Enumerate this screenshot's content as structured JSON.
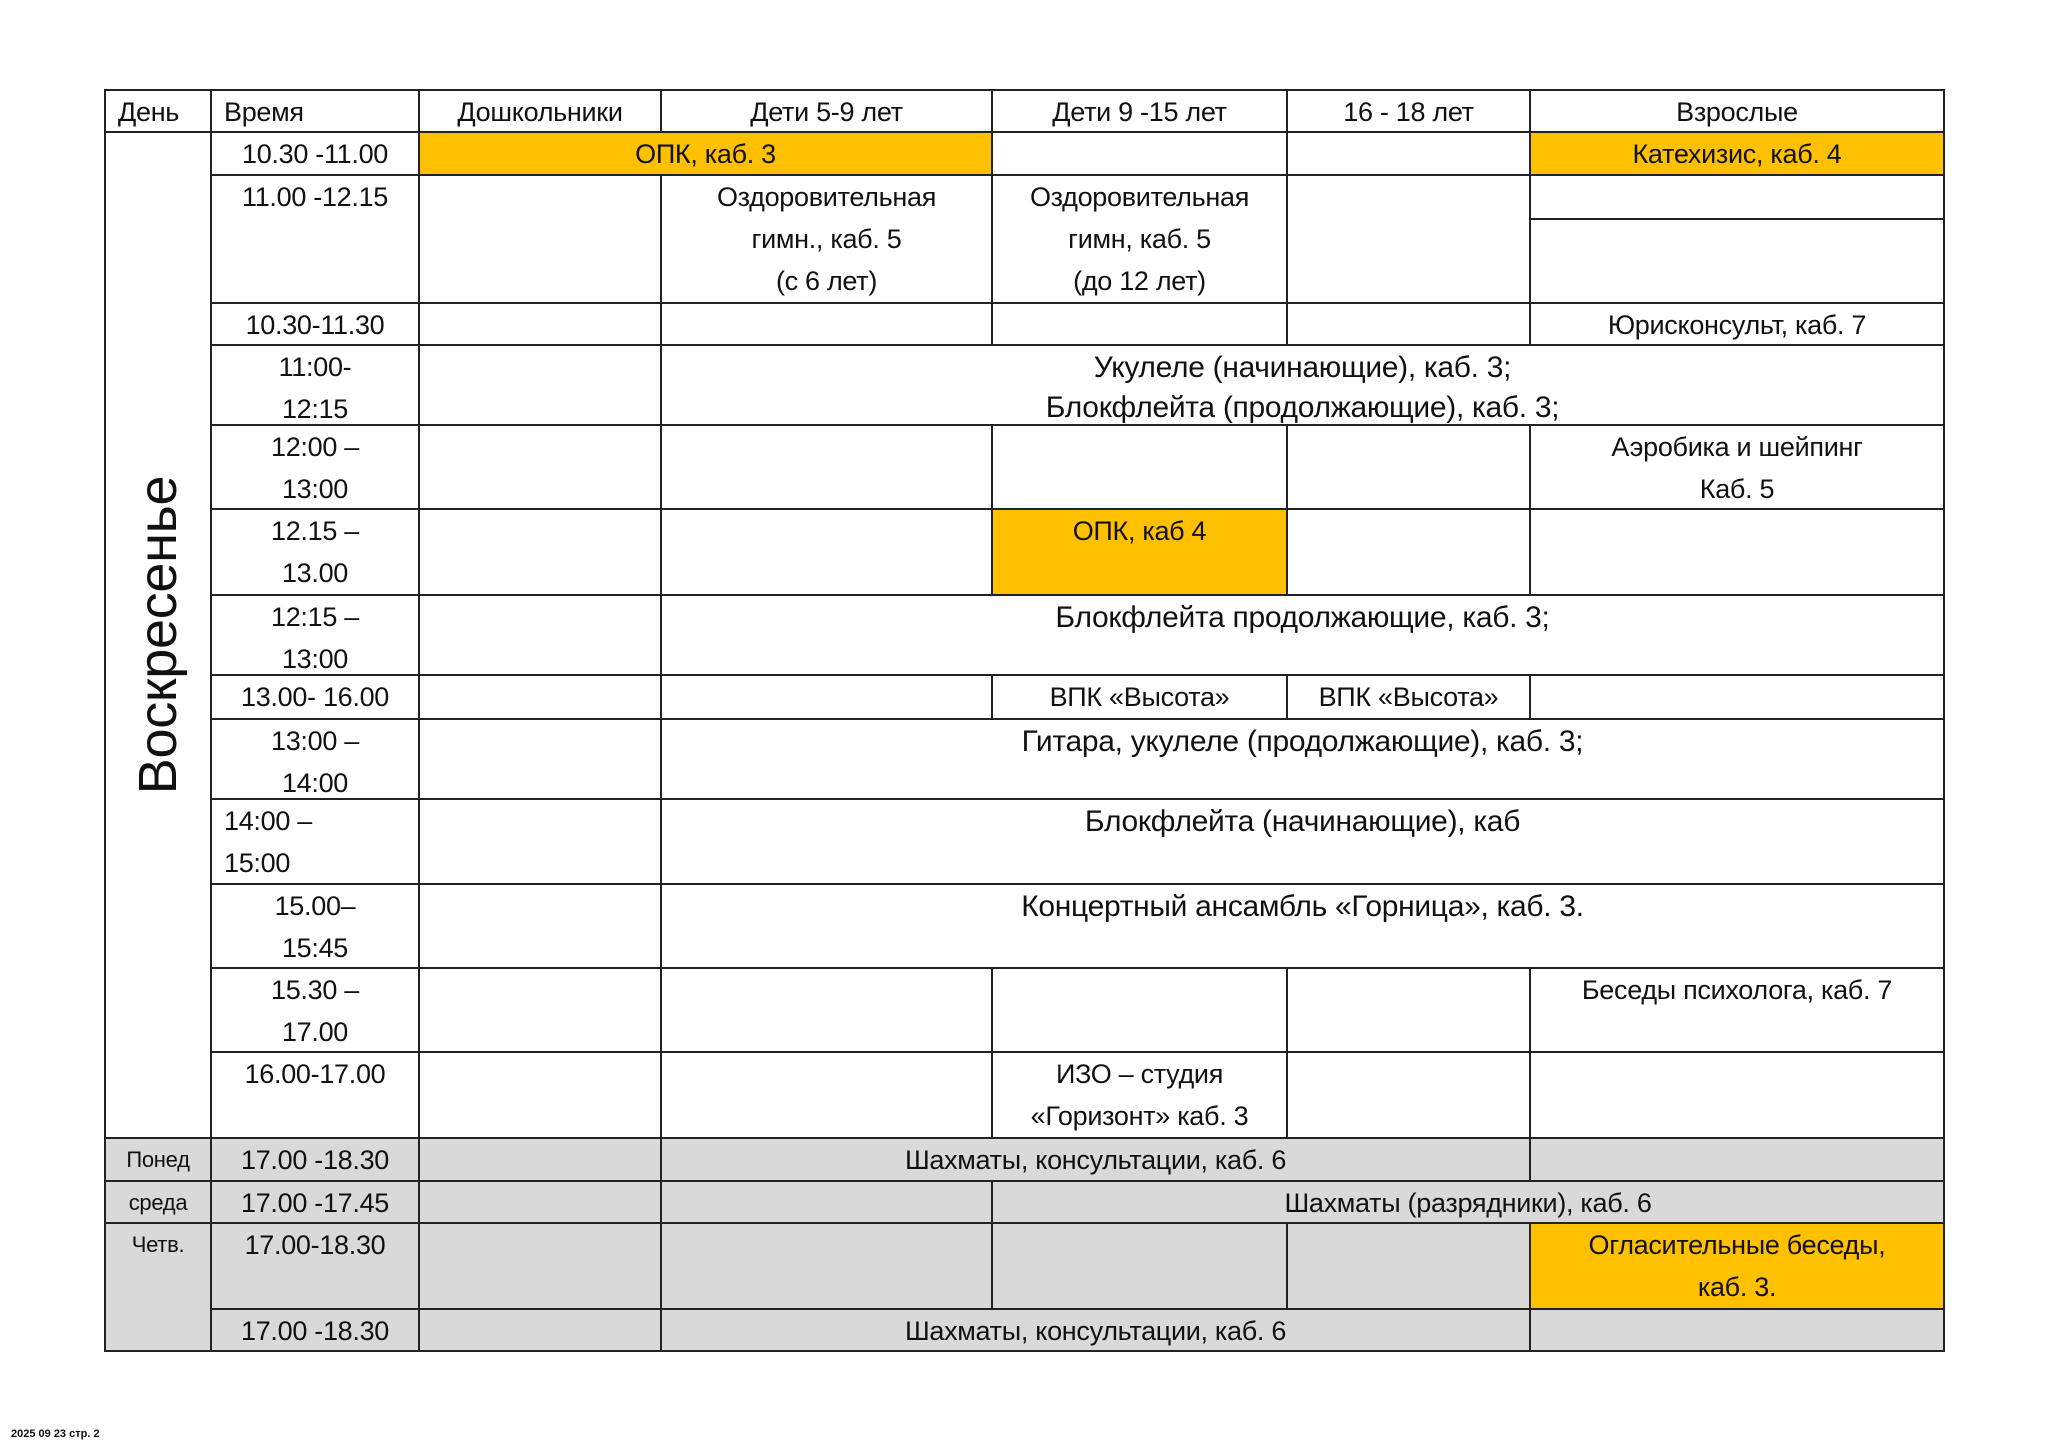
{
  "header": [
    "День",
    "Время",
    "Дошкольники",
    "Дети 5-9 лет",
    "Дети 9 -15 лет",
    "16 - 18 лет",
    "Взрослые"
  ],
  "sunday_label": "Воскресенье",
  "rows": [
    {
      "time": "10.30 -11.00",
      "opk3": "ОПК, каб. 3",
      "katehizis": "Катехизис, каб. 4"
    },
    {
      "time": "11.00 -12.15",
      "gym1": "Оздоровительная\nгимн., каб. 5\n(с 6 лет)",
      "gym2": "Оздоровительная\nгимн, каб. 5\n(до 12 лет)"
    },
    {
      "time": "10.30-11.30",
      "jurist": "Юрисконсульт, каб. 7"
    },
    {
      "time": "11:00-\n12:15",
      "music": "Укулеле (начинающие), каб. 3;\nБлокфлейта (продолжающие), каб. 3;"
    },
    {
      "time": "12:00 –\n13:00",
      "aerobics": "Аэробика и шейпинг\nКаб. 5"
    },
    {
      "time": "12.15 –\n13.00",
      "opk4": "ОПК, каб 4"
    },
    {
      "time": "12:15 –\n13:00",
      "flute": "Блокфлейта продолжающие, каб. 3;"
    },
    {
      "time": "13.00- 16.00",
      "vpk1": "ВПК «Высота»",
      "vpk2": "ВПК «Высота»"
    },
    {
      "time": "13:00 –\n14:00",
      "guitar": "Гитара, укулеле (продолжающие), каб. 3;"
    },
    {
      "time": "14:00 –\n15:00",
      "flute_beg": "Блокфлейта (начинающие), каб"
    },
    {
      "time": "15.00–\n15:45",
      "ensemble": "Концертный ансамбль «Горница», каб. 3."
    },
    {
      "time": "15.30 –\n17.00",
      "psych": "Беседы психолога, каб. 7"
    },
    {
      "time": "16.00-17.00",
      "izo": "ИЗО – студия\n«Горизонт» каб. 3"
    },
    {
      "day": "Понед",
      "time": "17.00 -18.30",
      "chess": "Шахматы, консультации, каб. 6"
    },
    {
      "day": "среда",
      "time": "17.00 -17.45",
      "chess": "Шахматы (разрядники), каб. 6"
    },
    {
      "day": "Четв.",
      "time": "17.00-18.30",
      "oglas": "Огласительные беседы,\nкаб. 3."
    },
    {
      "time": "17.00 -18.30",
      "chess": "Шахматы, консультации, каб. 6"
    }
  ],
  "footer": "2025 09 23 стр. 2",
  "colors": {
    "highlight": "#FFC000",
    "weekday_bg": "#D9D9D9",
    "border": "#222222"
  }
}
